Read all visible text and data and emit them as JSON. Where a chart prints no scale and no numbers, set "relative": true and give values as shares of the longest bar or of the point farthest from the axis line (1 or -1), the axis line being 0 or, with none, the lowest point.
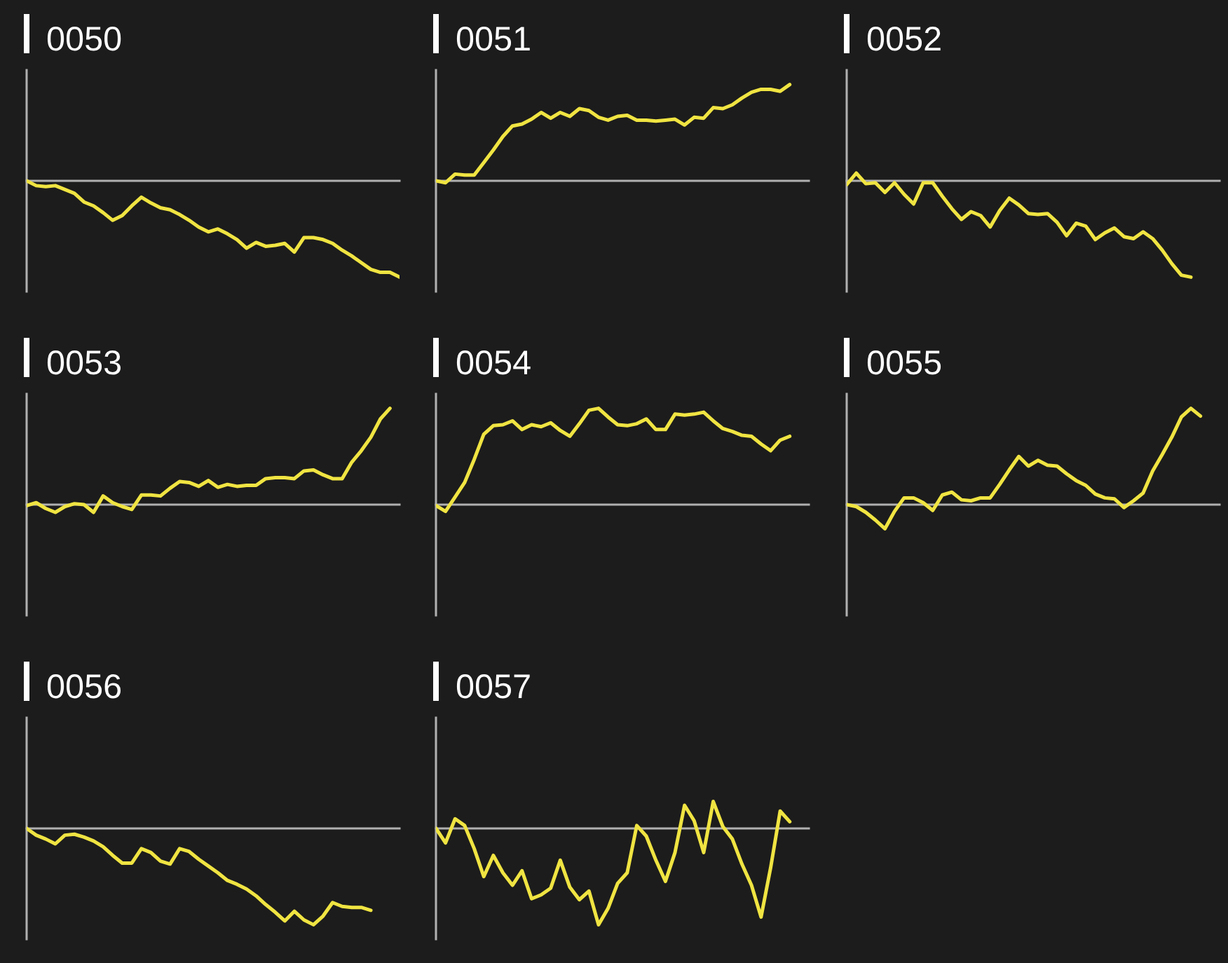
{
  "chart_data": [
    {
      "type": "line",
      "title": "0050",
      "relative": true,
      "tick_labels": false,
      "categories": [
        null,
        null,
        null,
        null,
        null,
        null,
        null,
        null,
        null,
        null,
        null,
        null,
        null,
        null,
        null,
        null,
        null,
        null,
        null,
        null,
        null,
        null,
        null,
        null,
        null,
        null,
        null,
        null,
        null,
        null,
        null,
        null,
        null,
        null,
        null,
        null,
        null,
        null,
        null,
        null
      ],
      "series": [
        {
          "color": "#f0e442",
          "values": [
            0,
            -0.05,
            -0.06,
            -0.05,
            -0.09,
            -0.13,
            -0.22,
            -0.26,
            -0.33,
            -0.41,
            -0.36,
            -0.26,
            -0.17,
            -0.23,
            -0.28,
            -0.3,
            -0.35,
            -0.41,
            -0.48,
            -0.53,
            -0.5,
            -0.55,
            -0.61,
            -0.7,
            -0.64,
            -0.68,
            -0.67,
            -0.65,
            -0.74,
            -0.59,
            -0.59,
            -0.61,
            -0.65,
            -0.72,
            -0.78,
            -0.85,
            -0.92,
            -0.95,
            -0.95,
            -1
          ]
        }
      ]
    },
    {
      "type": "line",
      "title": "0051",
      "relative": true,
      "tick_labels": false,
      "categories": [
        null,
        null,
        null,
        null,
        null,
        null,
        null,
        null,
        null,
        null,
        null,
        null,
        null,
        null,
        null,
        null,
        null,
        null,
        null,
        null,
        null,
        null,
        null,
        null,
        null,
        null,
        null,
        null,
        null,
        null,
        null,
        null,
        null,
        null,
        null,
        null,
        null,
        null,
        null,
        null
      ],
      "series": [
        {
          "color": "#f0e442",
          "values": [
            0,
            -0.02,
            0.07,
            0.06,
            0.06,
            0.19,
            0.32,
            0.46,
            0.57,
            0.59,
            0.64,
            0.71,
            0.65,
            0.71,
            0.67,
            0.75,
            0.73,
            0.66,
            0.63,
            0.67,
            0.68,
            0.63,
            0.63,
            0.62,
            0.63,
            0.64,
            0.58,
            0.66,
            0.65,
            0.76,
            0.75,
            0.79,
            0.86,
            0.92,
            0.95,
            0.95,
            0.93,
            1,
            null,
            null
          ]
        }
      ]
    },
    {
      "type": "line",
      "title": "0052",
      "relative": true,
      "tick_labels": false,
      "categories": [
        null,
        null,
        null,
        null,
        null,
        null,
        null,
        null,
        null,
        null,
        null,
        null,
        null,
        null,
        null,
        null,
        null,
        null,
        null,
        null,
        null,
        null,
        null,
        null,
        null,
        null,
        null,
        null,
        null,
        null,
        null,
        null,
        null,
        null,
        null,
        null,
        null,
        null,
        null,
        null
      ],
      "series": [
        {
          "color": "#f0e442",
          "values": [
            -0.04,
            0.08,
            -0.03,
            -0.02,
            -0.12,
            -0.02,
            -0.14,
            -0.24,
            -0.02,
            -0.02,
            -0.16,
            -0.29,
            -0.4,
            -0.32,
            -0.36,
            -0.48,
            -0.31,
            -0.18,
            -0.25,
            -0.34,
            -0.35,
            -0.34,
            -0.43,
            -0.57,
            -0.44,
            -0.47,
            -0.61,
            -0.54,
            -0.49,
            -0.58,
            -0.6,
            -0.53,
            -0.6,
            -0.72,
            -0.86,
            -0.98,
            -1,
            null,
            null,
            null
          ]
        }
      ]
    },
    {
      "type": "line",
      "title": "0053",
      "relative": true,
      "tick_labels": false,
      "categories": [
        null,
        null,
        null,
        null,
        null,
        null,
        null,
        null,
        null,
        null,
        null,
        null,
        null,
        null,
        null,
        null,
        null,
        null,
        null,
        null,
        null,
        null,
        null,
        null,
        null,
        null,
        null,
        null,
        null,
        null,
        null,
        null,
        null,
        null,
        null,
        null,
        null,
        null,
        null,
        null
      ],
      "series": [
        {
          "color": "#f0e442",
          "values": [
            -0.01,
            0.02,
            -0.04,
            -0.08,
            -0.02,
            0.01,
            0,
            -0.08,
            0.09,
            0.02,
            -0.02,
            -0.05,
            0.1,
            0.1,
            0.09,
            0.17,
            0.24,
            0.23,
            0.19,
            0.25,
            0.18,
            0.21,
            0.19,
            0.2,
            0.2,
            0.27,
            0.28,
            0.28,
            0.27,
            0.35,
            0.36,
            0.31,
            0.27,
            0.27,
            0.44,
            0.56,
            0.7,
            0.89,
            1,
            null
          ]
        }
      ]
    },
    {
      "type": "line",
      "title": "0054",
      "relative": true,
      "tick_labels": false,
      "categories": [
        null,
        null,
        null,
        null,
        null,
        null,
        null,
        null,
        null,
        null,
        null,
        null,
        null,
        null,
        null,
        null,
        null,
        null,
        null,
        null,
        null,
        null,
        null,
        null,
        null,
        null,
        null,
        null,
        null,
        null,
        null,
        null,
        null,
        null,
        null,
        null,
        null,
        null,
        null,
        null
      ],
      "series": [
        {
          "color": "#f0e442",
          "values": [
            -0.01,
            -0.07,
            0.08,
            0.23,
            0.47,
            0.73,
            0.82,
            0.83,
            0.87,
            0.78,
            0.83,
            0.81,
            0.85,
            0.77,
            0.71,
            0.84,
            0.98,
            1,
            0.91,
            0.83,
            0.82,
            0.84,
            0.89,
            0.78,
            0.78,
            0.94,
            0.93,
            0.94,
            0.96,
            0.87,
            0.79,
            0.76,
            0.72,
            0.71,
            0.63,
            0.56,
            0.67,
            0.71,
            null,
            null
          ]
        }
      ]
    },
    {
      "type": "line",
      "title": "0055",
      "relative": true,
      "tick_labels": false,
      "categories": [
        null,
        null,
        null,
        null,
        null,
        null,
        null,
        null,
        null,
        null,
        null,
        null,
        null,
        null,
        null,
        null,
        null,
        null,
        null,
        null,
        null,
        null,
        null,
        null,
        null,
        null,
        null,
        null,
        null,
        null,
        null,
        null,
        null,
        null,
        null,
        null,
        null,
        null,
        null,
        null
      ],
      "series": [
        {
          "color": "#f0e442",
          "values": [
            0,
            -0.02,
            -0.08,
            -0.16,
            -0.25,
            -0.07,
            0.07,
            0.07,
            0.02,
            -0.06,
            0.1,
            0.13,
            0.05,
            0.04,
            0.07,
            0.07,
            0.21,
            0.36,
            0.5,
            0.4,
            0.46,
            0.41,
            0.4,
            0.32,
            0.25,
            0.2,
            0.11,
            0.07,
            0.06,
            -0.03,
            0.04,
            0.12,
            0.35,
            0.52,
            0.7,
            0.91,
            1,
            0.92,
            null,
            null
          ]
        }
      ]
    },
    {
      "type": "line",
      "title": "0056",
      "relative": true,
      "tick_labels": false,
      "categories": [
        null,
        null,
        null,
        null,
        null,
        null,
        null,
        null,
        null,
        null,
        null,
        null,
        null,
        null,
        null,
        null,
        null,
        null,
        null,
        null,
        null,
        null,
        null,
        null,
        null,
        null,
        null,
        null,
        null,
        null,
        null,
        null,
        null,
        null,
        null,
        null,
        null,
        null,
        null,
        null
      ],
      "series": [
        {
          "color": "#f0e442",
          "values": [
            0,
            -0.07,
            -0.11,
            -0.16,
            -0.07,
            -0.06,
            -0.09,
            -0.13,
            -0.19,
            -0.28,
            -0.36,
            -0.36,
            -0.21,
            -0.25,
            -0.34,
            -0.37,
            -0.21,
            -0.24,
            -0.32,
            -0.39,
            -0.46,
            -0.54,
            -0.58,
            -0.63,
            -0.7,
            -0.79,
            -0.87,
            -0.96,
            -0.86,
            -0.95,
            -1,
            -0.91,
            -0.77,
            -0.81,
            -0.82,
            -0.82,
            -0.85,
            null,
            null,
            null
          ]
        }
      ]
    },
    {
      "type": "line",
      "title": "0057",
      "relative": true,
      "tick_labels": false,
      "categories": [
        null,
        null,
        null,
        null,
        null,
        null,
        null,
        null,
        null,
        null,
        null,
        null,
        null,
        null,
        null,
        null,
        null,
        null,
        null,
        null,
        null,
        null,
        null,
        null,
        null,
        null,
        null,
        null,
        null,
        null,
        null,
        null,
        null,
        null,
        null,
        null,
        null,
        null,
        null,
        null
      ],
      "series": [
        {
          "color": "#f0e442",
          "values": [
            0,
            -0.15,
            0.1,
            0.03,
            -0.21,
            -0.5,
            -0.28,
            -0.46,
            -0.59,
            -0.44,
            -0.73,
            -0.69,
            -0.62,
            -0.33,
            -0.61,
            -0.74,
            -0.65,
            -1,
            -0.83,
            -0.57,
            -0.46,
            0.03,
            -0.08,
            -0.33,
            -0.55,
            -0.25,
            0.24,
            0.08,
            -0.25,
            0.28,
            0.02,
            -0.11,
            -0.37,
            -0.59,
            -0.92,
            -0.41,
            0.18,
            0.07,
            null,
            null
          ]
        }
      ]
    }
  ]
}
